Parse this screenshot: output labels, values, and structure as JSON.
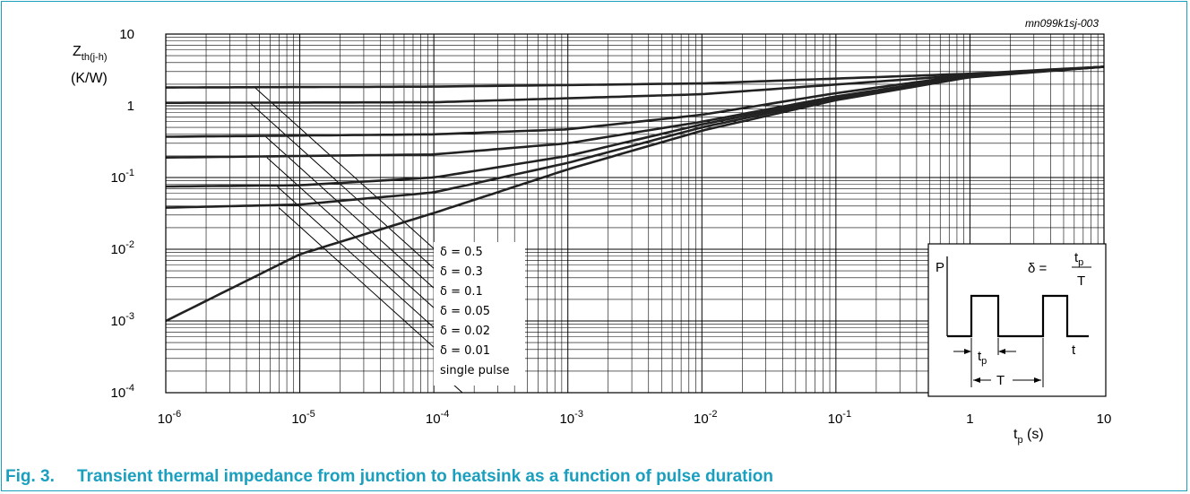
{
  "chart_data": {
    "type": "line",
    "x_scale": "log",
    "y_scale": "log",
    "xlim": [
      1e-06,
      10
    ],
    "ylim": [
      0.0001,
      10
    ],
    "grid": true,
    "reference": "mn099k1sj-003",
    "ylabel": {
      "main": "Z",
      "sub": "th(j-h)",
      "unit": "(K/W)"
    },
    "xlabel": {
      "main": "t",
      "sub": "p",
      "unit": " (s)"
    },
    "x_ticks": [
      {
        "value": 1e-06,
        "base": "10",
        "exp": "-6"
      },
      {
        "value": 1e-05,
        "base": "10",
        "exp": "-5"
      },
      {
        "value": 0.0001,
        "base": "10",
        "exp": "-4"
      },
      {
        "value": 0.001,
        "base": "10",
        "exp": "-3"
      },
      {
        "value": 0.01,
        "base": "10",
        "exp": "-2"
      },
      {
        "value": 0.1,
        "base": "10",
        "exp": "-1"
      },
      {
        "value": 1,
        "base": "1",
        "exp": ""
      },
      {
        "value": 10,
        "base": "10",
        "exp": ""
      }
    ],
    "y_ticks": [
      {
        "value": 10,
        "base": "10",
        "exp": ""
      },
      {
        "value": 1,
        "base": "1",
        "exp": ""
      },
      {
        "value": 0.1,
        "base": "10",
        "exp": "-1"
      },
      {
        "value": 0.01,
        "base": "10",
        "exp": "-2"
      },
      {
        "value": 0.001,
        "base": "10",
        "exp": "-3"
      },
      {
        "value": 0.0001,
        "base": "10",
        "exp": "-4"
      }
    ],
    "series": [
      {
        "name": "δ = 0.5",
        "steady": 1.8,
        "x": [
          1e-06,
          0.0001,
          0.01,
          1,
          10
        ],
        "y": [
          1.8,
          1.85,
          2.05,
          2.8,
          3.5
        ]
      },
      {
        "name": "δ = 0.3",
        "steady": 1.1,
        "x": [
          1e-06,
          0.0001,
          0.01,
          1,
          10
        ],
        "y": [
          1.1,
          1.12,
          1.45,
          2.7,
          3.5
        ]
      },
      {
        "name": "δ = 0.1",
        "steady": 0.37,
        "x": [
          1e-06,
          0.0001,
          0.001,
          0.01,
          0.1,
          1,
          10
        ],
        "y": [
          0.37,
          0.4,
          0.47,
          0.75,
          1.5,
          2.7,
          3.5
        ]
      },
      {
        "name": "δ = 0.05",
        "steady": 0.19,
        "x": [
          1e-06,
          0.0001,
          0.001,
          0.01,
          0.1,
          1,
          10
        ],
        "y": [
          0.19,
          0.21,
          0.3,
          0.6,
          1.35,
          2.6,
          3.5
        ]
      },
      {
        "name": "δ = 0.02",
        "steady": 0.075,
        "x": [
          1e-06,
          1e-05,
          0.0001,
          0.001,
          0.01,
          0.1,
          1,
          10
        ],
        "y": [
          0.075,
          0.078,
          0.1,
          0.2,
          0.55,
          1.3,
          2.6,
          3.5
        ]
      },
      {
        "name": "δ = 0.01",
        "steady": 0.038,
        "x": [
          1e-06,
          1e-05,
          0.0001,
          0.001,
          0.01,
          0.1,
          1,
          10
        ],
        "y": [
          0.038,
          0.042,
          0.062,
          0.16,
          0.5,
          1.25,
          2.55,
          3.5
        ]
      },
      {
        "name": "single pulse",
        "steady": 0.0001,
        "x": [
          1e-06,
          1e-05,
          0.0001,
          0.001,
          0.01,
          0.1,
          1,
          10
        ],
        "y": [
          0.001,
          0.0085,
          0.032,
          0.13,
          0.45,
          1.2,
          2.5,
          3.5
        ]
      }
    ]
  },
  "inset": {
    "power_label": "P",
    "delta": "δ =",
    "ratio_num_main": "t",
    "ratio_num_sub": "p",
    "ratio_den": "T",
    "time_label": "t",
    "tp_main": "t",
    "tp_sub": "p",
    "period_label": "T"
  },
  "caption": {
    "number": "Fig. 3.",
    "title": "Transient thermal impedance from junction to heatsink as a function of pulse duration"
  },
  "colors": {
    "accent": "#1a9fbf",
    "line": "#222222",
    "grid": "#000000"
  }
}
